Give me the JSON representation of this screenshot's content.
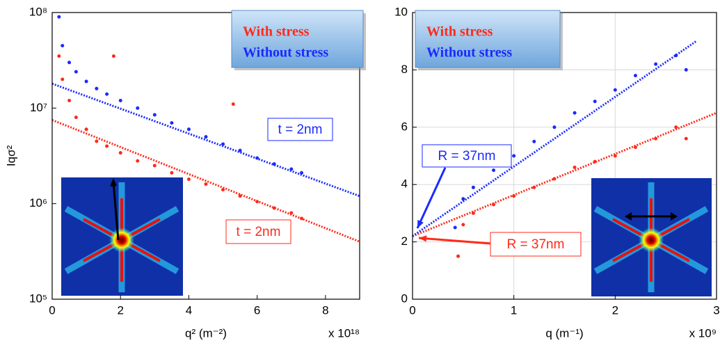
{
  "chart_data": [
    {
      "type": "scatter",
      "ylog": true,
      "grid": false,
      "xlabel": "q² (m⁻²)",
      "ylabel": "Iqσ²",
      "x_multiplier": "x 10¹⁸",
      "xlim": [
        0,
        9
      ],
      "xticks": [
        0,
        2,
        4,
        6,
        8
      ],
      "ylim": [
        100000,
        100000000
      ],
      "yticks": [
        {
          "value": 100000,
          "label": "10⁵"
        },
        {
          "value": 1000000,
          "label": "10⁶"
        },
        {
          "value": 10000000,
          "label": "10⁷"
        },
        {
          "value": 100000000,
          "label": "10⁸"
        }
      ],
      "series": [
        {
          "name": "With stress",
          "color": "#ff2a1a",
          "x": [
            0.2,
            0.3,
            0.5,
            0.7,
            1,
            1.3,
            1.6,
            1.8,
            2,
            2.5,
            3,
            3.5,
            4,
            4.5,
            5,
            5.3,
            5.5,
            6,
            6.5,
            7,
            7.3
          ],
          "values": [
            35000000,
            20000000,
            12000000,
            8000000,
            6000000,
            4500000,
            4000000,
            35000000,
            3400000,
            2800000,
            2500000,
            2100000,
            1800000,
            1600000,
            1400000,
            11000000,
            1200000,
            1050000,
            900000,
            800000,
            700000
          ]
        },
        {
          "name": "Without stress",
          "color": "#1a2aff",
          "x": [
            0.2,
            0.3,
            0.5,
            0.7,
            1,
            1.3,
            1.6,
            2,
            2.5,
            3,
            3.5,
            4,
            4.5,
            5,
            5.5,
            6,
            6.5,
            7,
            7.3
          ],
          "values": [
            90000000,
            45000000,
            30000000,
            24000000,
            19000000,
            16000000,
            14000000,
            12000000,
            10000000,
            8500000,
            7000000,
            6000000,
            5000000,
            4200000,
            3600000,
            3000000,
            2600000,
            2300000,
            2100000
          ]
        }
      ],
      "fit_lines": [
        {
          "color": "#ff2a1a",
          "x": [
            0,
            9
          ],
          "y": [
            7500000,
            400000
          ]
        },
        {
          "color": "#1a2aff",
          "x": [
            0,
            9
          ],
          "y": [
            18000000,
            1200000
          ]
        }
      ],
      "annotations": [
        "t = 2nm",
        "t = 2nm"
      ]
    },
    {
      "type": "scatter",
      "ylog": false,
      "grid": true,
      "xlabel": "q (m⁻¹)",
      "x_multiplier": "x 10⁹",
      "xlim": [
        0,
        3
      ],
      "xticks": [
        0,
        1,
        2,
        3
      ],
      "ylim": [
        0,
        10
      ],
      "yticks": [
        0,
        2,
        4,
        6,
        8,
        10
      ],
      "series": [
        {
          "name": "With stress",
          "color": "#ff2a1a",
          "x": [
            0.45,
            0.5,
            0.6,
            0.8,
            1,
            1.2,
            1.4,
            1.6,
            1.8,
            2,
            2.2,
            2.4,
            2.6,
            2.7
          ],
          "values": [
            1.5,
            2.6,
            3.0,
            3.3,
            3.6,
            3.9,
            4.2,
            4.6,
            4.8,
            5.0,
            5.3,
            5.6,
            6.0,
            5.6
          ]
        },
        {
          "name": "Without stress",
          "color": "#1a2aff",
          "x": [
            0.42,
            0.5,
            0.6,
            0.8,
            1,
            1.2,
            1.4,
            1.6,
            1.8,
            2,
            2.2,
            2.4,
            2.6,
            2.7
          ],
          "values": [
            2.5,
            3.5,
            3.9,
            4.5,
            5.0,
            5.5,
            6.0,
            6.5,
            6.9,
            7.3,
            7.8,
            8.2,
            8.5,
            8.0
          ]
        }
      ],
      "fit_lines": [
        {
          "color": "#ff2a1a",
          "x": [
            0,
            3
          ],
          "y": [
            2.2,
            6.5
          ]
        },
        {
          "color": "#1a2aff",
          "x": [
            0,
            2.8
          ],
          "y": [
            2.2,
            9
          ]
        }
      ],
      "annotations": [
        "R = 37nm",
        "R = 37nm"
      ]
    }
  ]
}
